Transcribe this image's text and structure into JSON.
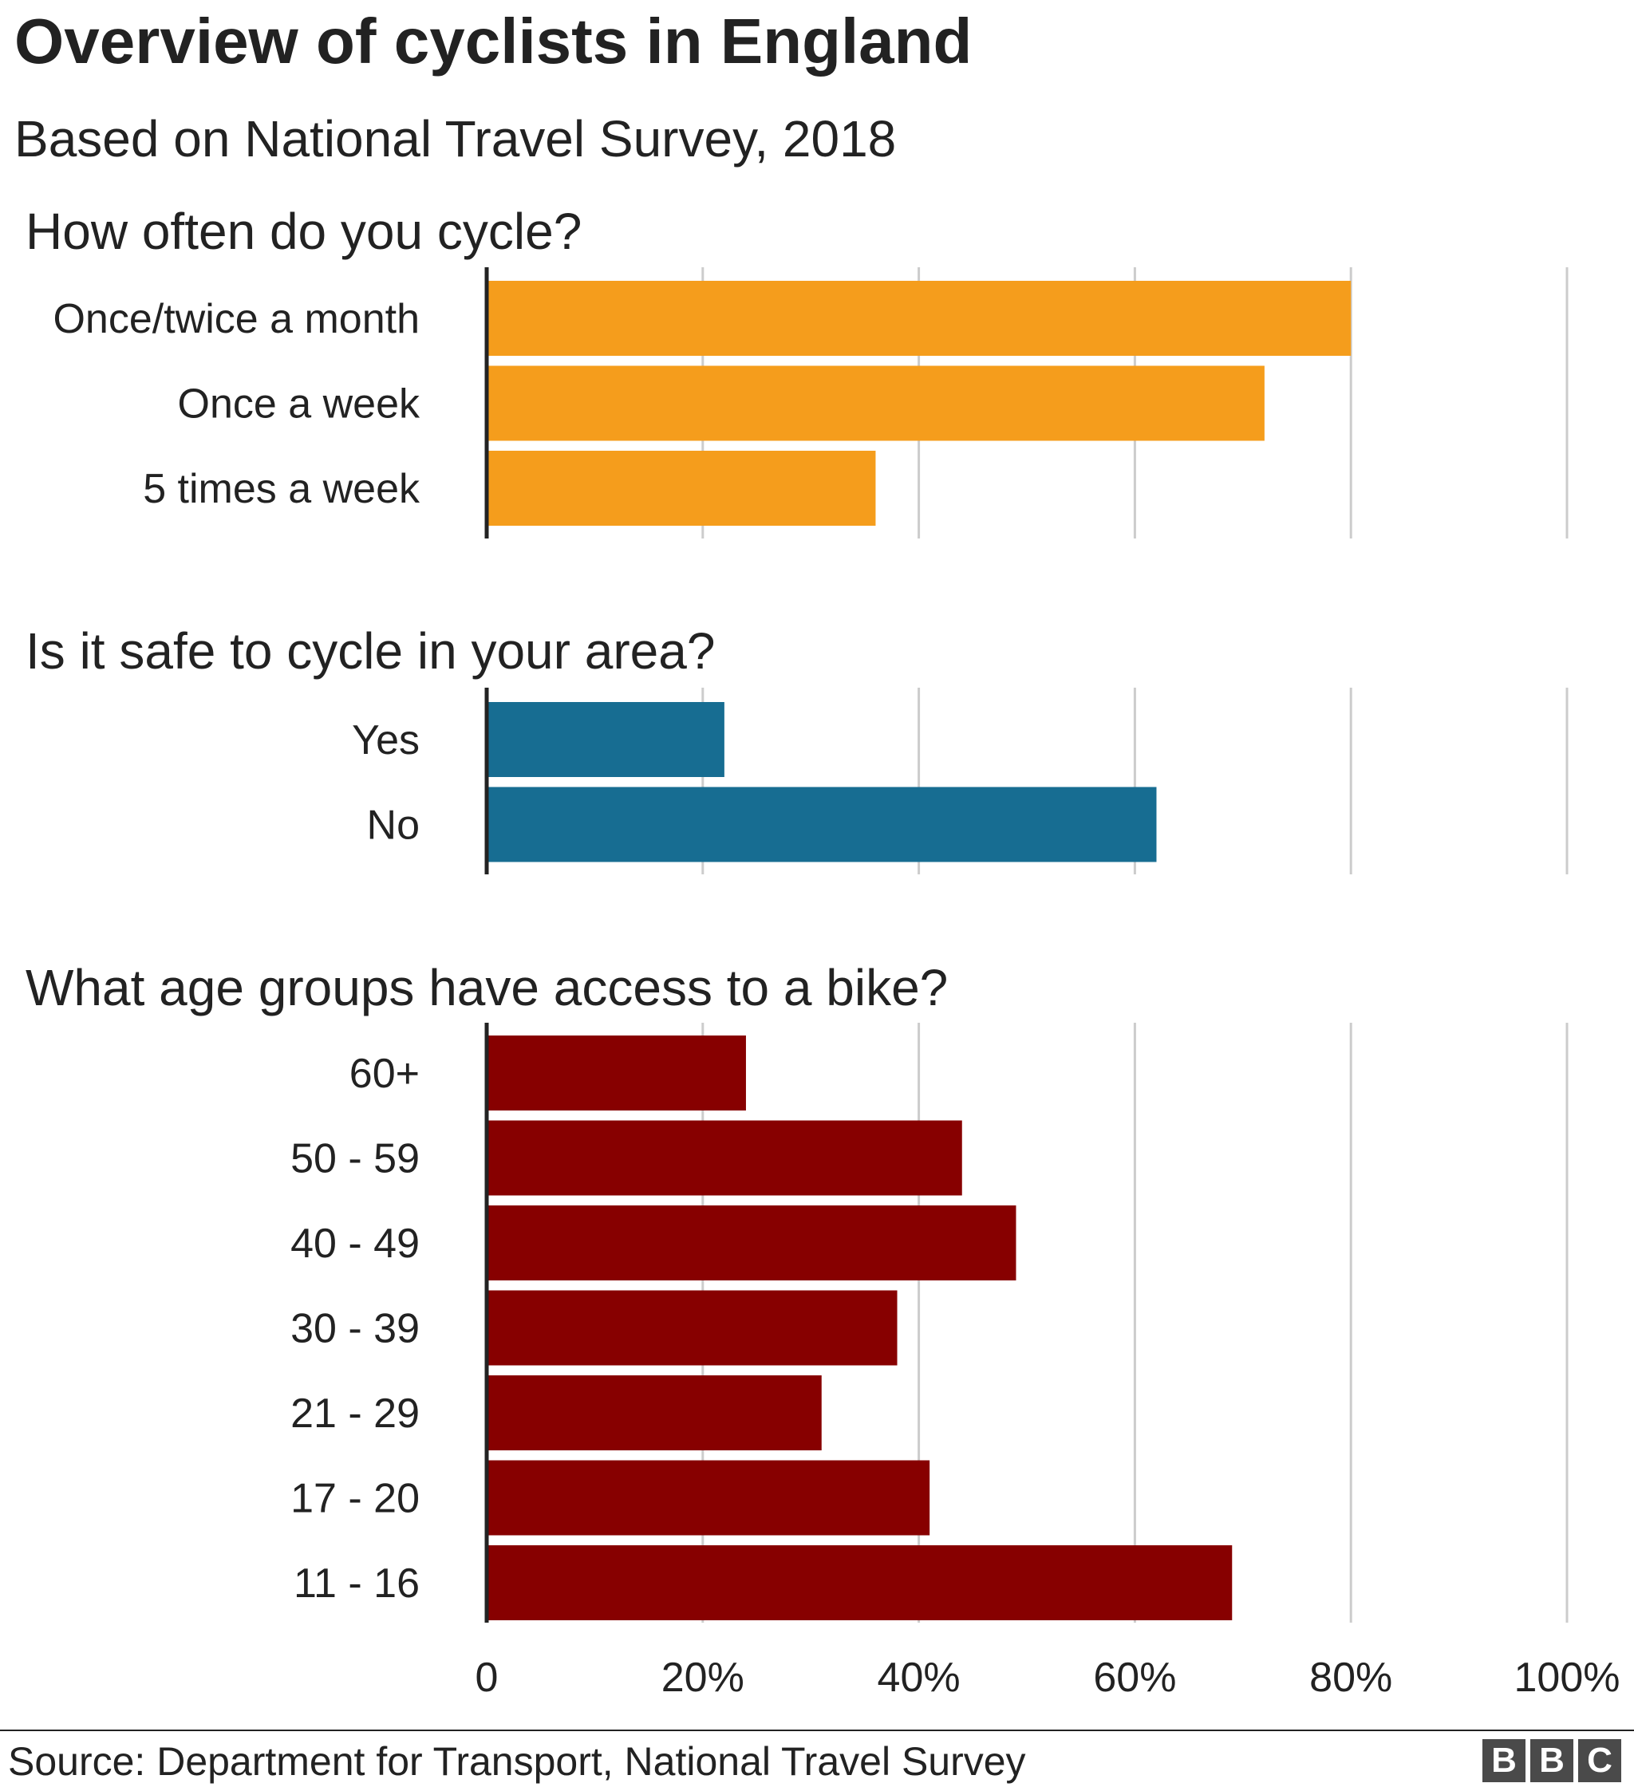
{
  "title": "Overview of cyclists in England",
  "subtitle": "Based on National Travel Survey, 2018",
  "source": "Source: Department for Transport, National Travel Survey",
  "logo": {
    "letters": [
      "B",
      "B",
      "C"
    ]
  },
  "chart_data": [
    {
      "type": "bar",
      "orientation": "horizontal",
      "title": "How often do you cycle?",
      "categories": [
        "Once/twice a month",
        "Once a week",
        "5 times a week"
      ],
      "values": [
        80,
        72,
        36
      ],
      "color": "#f59d1c",
      "xlim": [
        0,
        100
      ],
      "grid": true
    },
    {
      "type": "bar",
      "orientation": "horizontal",
      "title": "Is it safe to cycle in your area?",
      "categories": [
        "Yes",
        "No"
      ],
      "values": [
        22,
        62
      ],
      "color": "#176d92",
      "xlim": [
        0,
        100
      ],
      "grid": true
    },
    {
      "type": "bar",
      "orientation": "horizontal",
      "title": "What age groups have access to a bike?",
      "categories": [
        "60+",
        "50 - 59",
        "40 - 49",
        "30 - 39",
        "21 - 29",
        "17 - 20",
        "11 - 16"
      ],
      "values": [
        24,
        44,
        49,
        38,
        31,
        41,
        69
      ],
      "color": "#870000",
      "xlim": [
        0,
        100
      ],
      "grid": true
    }
  ],
  "axis": {
    "ticks": [
      0,
      20,
      40,
      60,
      80,
      100
    ],
    "tick_labels": [
      "0",
      "20%",
      "40%",
      "60%",
      "80%",
      "100%"
    ]
  }
}
